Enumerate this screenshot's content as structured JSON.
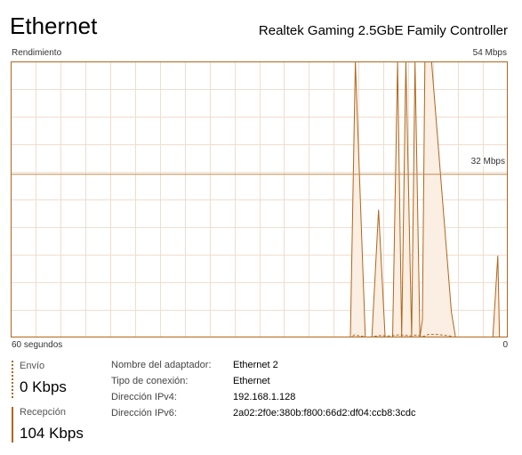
{
  "header": {
    "title": "Ethernet",
    "adapter_name": "Realtek Gaming 2.5GbE Family Controller"
  },
  "graph": {
    "label_top_left": "Rendimiento",
    "label_top_right": "54 Mbps",
    "label_mid_right": "32 Mbps",
    "label_bottom_left": "60 segundos",
    "label_bottom_right": "0",
    "line_color": "#b0661c",
    "fill_color": "#fbeee2",
    "grid_color": "#f0ddd0"
  },
  "chart_data": {
    "type": "area",
    "x_unit": "seconds",
    "xlim": [
      60,
      0
    ],
    "ylim": [
      0,
      54
    ],
    "series": [
      {
        "name": "Recepción",
        "points": [
          [
            60,
            0
          ],
          [
            1,
            0
          ],
          [
            19,
            0
          ],
          [
            18.4,
            54
          ],
          [
            17.2,
            0
          ],
          [
            16.4,
            0
          ],
          [
            15.6,
            25
          ],
          [
            14.8,
            0
          ],
          [
            13.9,
            0
          ],
          [
            13.3,
            54
          ],
          [
            12.8,
            0
          ],
          [
            12.3,
            54
          ],
          [
            11.6,
            0
          ],
          [
            11.2,
            54
          ],
          [
            10.6,
            0
          ],
          [
            10.3,
            3.5
          ],
          [
            10.0,
            54
          ],
          [
            9.2,
            54
          ],
          [
            6.8,
            5
          ],
          [
            6.3,
            0
          ],
          [
            4.0,
            0
          ],
          [
            3.6,
            0
          ],
          [
            1.8,
            0
          ],
          [
            1.2,
            16
          ],
          [
            0.6,
            0
          ],
          [
            0,
            0
          ]
        ]
      },
      {
        "name": "Envío",
        "points": [
          [
            60,
            0
          ],
          [
            19,
            0
          ],
          [
            18.5,
            0.5
          ],
          [
            17.8,
            0.3
          ],
          [
            16.8,
            0
          ],
          [
            15.4,
            0.4
          ],
          [
            14.4,
            0.3
          ],
          [
            13.2,
            0.5
          ],
          [
            12.2,
            0.4
          ],
          [
            11.5,
            0.3
          ],
          [
            11.0,
            0.5
          ],
          [
            10.2,
            0.2
          ],
          [
            9.6,
            0.6
          ],
          [
            8.5,
            0.6
          ],
          [
            7.0,
            0.3
          ],
          [
            6.5,
            0
          ],
          [
            0,
            0
          ]
        ]
      }
    ]
  },
  "send": {
    "label": "Envío",
    "value": "0 Kbps"
  },
  "receive": {
    "label": "Recepción",
    "value": "104 Kbps"
  },
  "properties": [
    {
      "key": "Nombre del adaptador:",
      "value": "Ethernet 2"
    },
    {
      "key": "Tipo de conexión:",
      "value": "Ethernet"
    },
    {
      "key": "Dirección IPv4:",
      "value": "192.168.1.128"
    },
    {
      "key": "Dirección IPv6:",
      "value": "2a02:2f0e:380b:f800:66d2:df04:ccb8:3cdc"
    }
  ]
}
